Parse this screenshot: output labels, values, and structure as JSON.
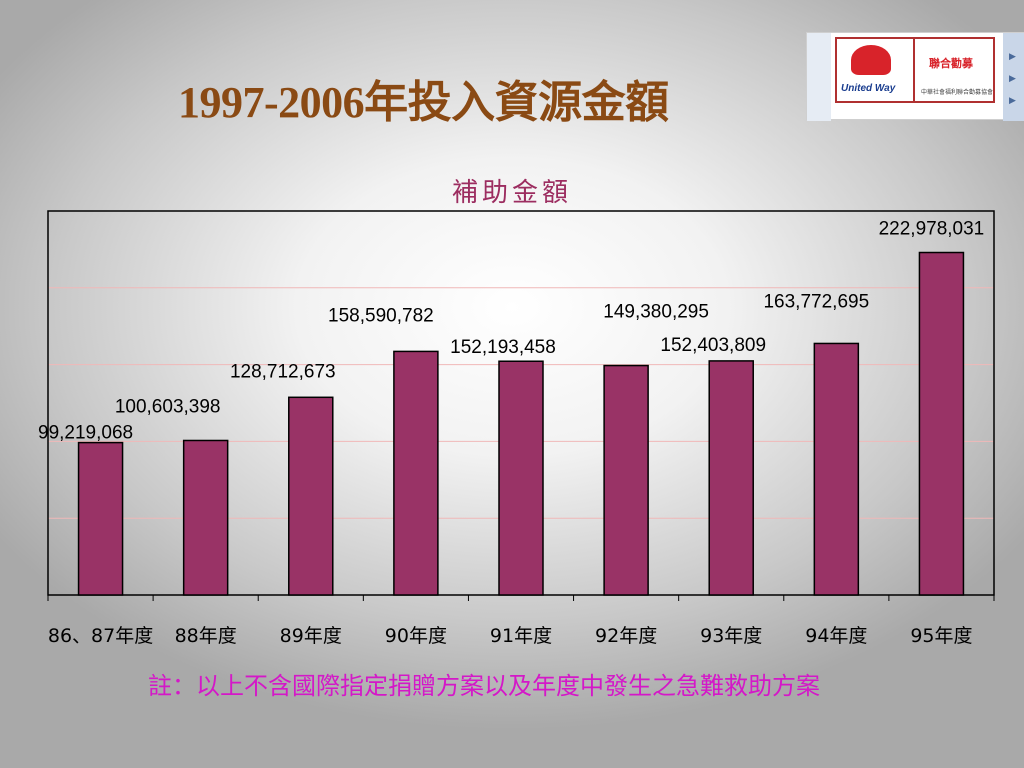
{
  "slide": {
    "title": "1997-2006年投入資源金額",
    "note": "註：以上不含國際指定捐贈方案以及年度中發生之急難救助方案"
  },
  "logo": {
    "brand": "United Way",
    "cn_name": "聯合勸募",
    "cn_org": "中華社會福利聯合勸募協會",
    "icon": "united-way-logo"
  },
  "colors": {
    "bar": "#993366",
    "title": "#8a4a14",
    "subtitle": "#9c2d60",
    "note": "#d418c8"
  },
  "chart_data": {
    "type": "bar",
    "title": "補助金額",
    "xlabel": "",
    "ylabel": "",
    "categories": [
      "86、87年度",
      "88年度",
      "89年度",
      "90年度",
      "91年度",
      "92年度",
      "93年度",
      "94年度",
      "95年度"
    ],
    "values": [
      99219068,
      100603398,
      128712673,
      158590782,
      152193458,
      149380295,
      152403809,
      163772695,
      222978031
    ],
    "value_labels": [
      "99,219,068",
      "100,603,398",
      "128,712,673",
      "158,590,782",
      "152,193,458",
      "149,380,295",
      "152,403,809",
      "163,772,695",
      "222,978,031"
    ],
    "ylim": [
      0,
      250000000
    ],
    "grid": true,
    "legend": "none"
  }
}
